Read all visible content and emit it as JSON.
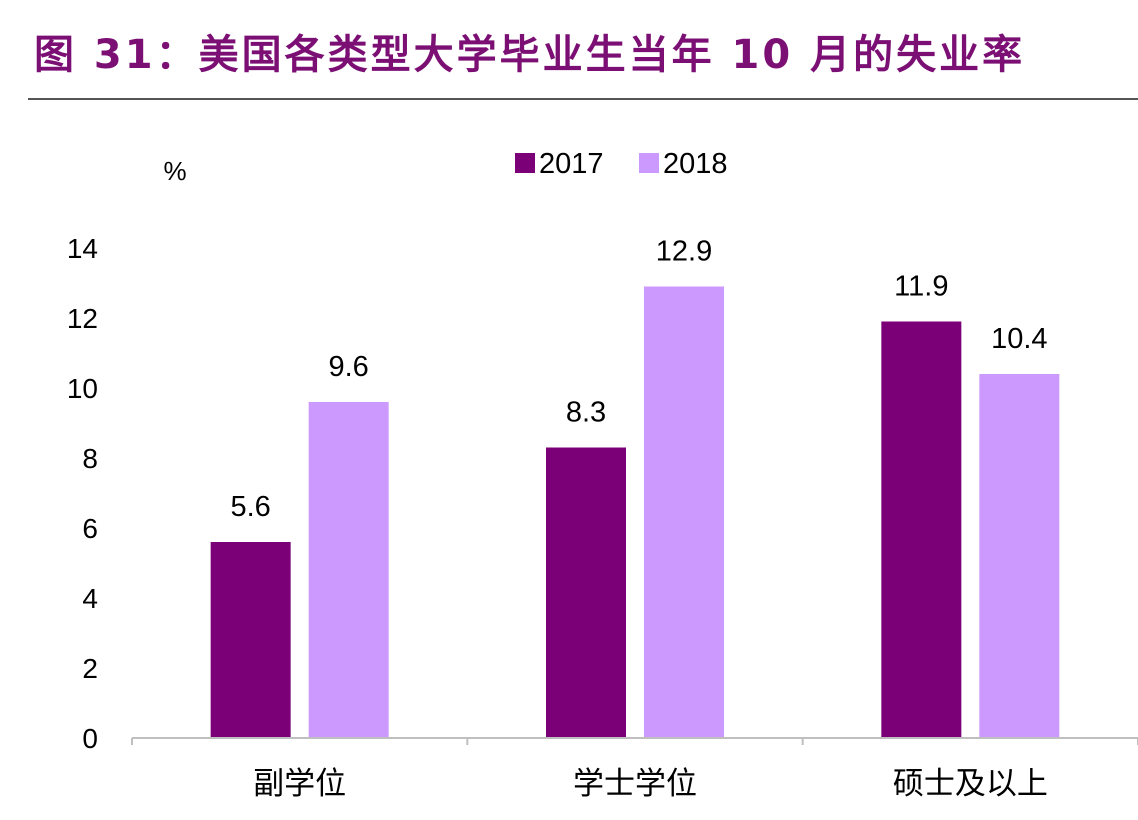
{
  "title": "图 31：美国各类型大学毕业生当年 10 月的失业率",
  "chart_data": {
    "type": "bar",
    "ylabel": "%",
    "ylim": [
      0,
      14
    ],
    "yticks": [
      0,
      2,
      4,
      6,
      8,
      10,
      12,
      14
    ],
    "categories": [
      "副学位",
      "学士学位",
      "硕士及以上"
    ],
    "series": [
      {
        "name": "2017",
        "color": "#7b0078",
        "values": [
          5.6,
          8.3,
          11.9
        ]
      },
      {
        "name": "2018",
        "color": "#cc99ff",
        "values": [
          9.6,
          12.9,
          10.4
        ]
      }
    ],
    "data_labels": true,
    "legend": "top-center",
    "grid": false
  }
}
